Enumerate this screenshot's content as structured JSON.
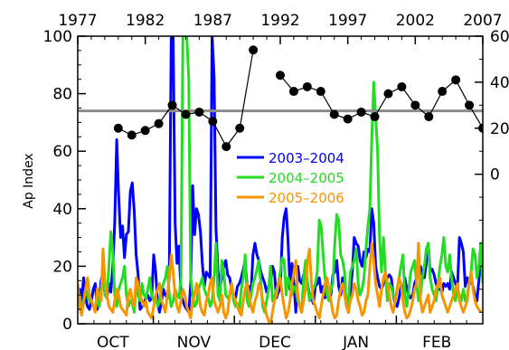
{
  "chart_data": {
    "type": "line",
    "title": "",
    "ylabel": "Ap Index",
    "xlabel": "",
    "ylim": [
      0,
      100
    ],
    "yticks": [
      0,
      20,
      40,
      60,
      80,
      100
    ],
    "bottom_axis": {
      "type": "categorical",
      "labels": [
        "OCT",
        "NOV",
        "DEC",
        "JAN",
        "FEB"
      ]
    },
    "top_axis": {
      "labels": [
        1977,
        1982,
        1987,
        1992,
        1997,
        2002,
        2007
      ],
      "range": [
        1977,
        2007
      ]
    },
    "right_axis": {
      "tick_labels": [
        "60",
        "40",
        "20",
        "0"
      ],
      "tick_values": [
        60,
        40,
        20,
        0
      ]
    },
    "reference_line": {
      "value": 74,
      "color": "#8c8c8c"
    },
    "annual_overlay": {
      "color": "#000000",
      "axis": "right",
      "segments": [
        {
          "year": [
            1980,
            1981,
            1982,
            1983,
            1984,
            1985,
            1986,
            1987,
            1988,
            1989
          ],
          "value": [
            20,
            17,
            19,
            22,
            30,
            26,
            27,
            23,
            12,
            20
          ]
        },
        {
          "year": [
            1989,
            1990
          ],
          "value": [
            20,
            54
          ]
        },
        {
          "year": [
            1992,
            1993,
            1994,
            1995,
            1996,
            1997,
            1998,
            1999,
            2000,
            2001,
            2002,
            2003,
            2004,
            2005,
            2006
          ],
          "value": [
            43,
            36,
            38,
            36,
            26,
            24,
            27,
            25,
            35,
            38,
            30,
            25,
            36,
            41,
            30
          ]
        },
        {
          "year": [
            2006,
            2007
          ],
          "value": [
            30,
            20
          ]
        }
      ],
      "dot_years": [
        1980,
        1981,
        1982,
        1983,
        1984,
        1985,
        1986,
        1987,
        1988,
        1989,
        1990,
        1992,
        1993,
        1994,
        1995,
        1996,
        1997,
        1998,
        1999,
        2000,
        2001,
        2002,
        2003,
        2004,
        2005,
        2006,
        2007
      ]
    },
    "series": [
      {
        "name": "2003–2004",
        "color": "#0000ff",
        "start_day": 0,
        "values": [
          10,
          12,
          8,
          16,
          9,
          6,
          5,
          8,
          12,
          14,
          5,
          8,
          15,
          18,
          10,
          9,
          14,
          11,
          20,
          35,
          64,
          45,
          30,
          34,
          23,
          31,
          32,
          46,
          49,
          39,
          24,
          17,
          5,
          6,
          7,
          9,
          10,
          8,
          9,
          24,
          18,
          7,
          4,
          8,
          12,
          10,
          9,
          16,
          100,
          100,
          35,
          21,
          27,
          10,
          8,
          6,
          5,
          4,
          14,
          48,
          31,
          40,
          38,
          32,
          21,
          13,
          18,
          17,
          16,
          100,
          86,
          33,
          18,
          12,
          16,
          20,
          22,
          17,
          16,
          12,
          10,
          9,
          13,
          14,
          16,
          19,
          22,
          13,
          13,
          11,
          24,
          28,
          24,
          22,
          18,
          16,
          14,
          11,
          13,
          14,
          20,
          18,
          9,
          11,
          12,
          30,
          37,
          40,
          29,
          12,
          21,
          14,
          4,
          20,
          15,
          14,
          17,
          16,
          14,
          10,
          9,
          7,
          13,
          14,
          16,
          11,
          13,
          9,
          10,
          9,
          10,
          17,
          18,
          22,
          13,
          10,
          16,
          12,
          8,
          4,
          11,
          18,
          30,
          28,
          27,
          22,
          20,
          25,
          23,
          26,
          25,
          40,
          35,
          20,
          16,
          13,
          12,
          14,
          16,
          16,
          17,
          16,
          10,
          7,
          6,
          9,
          13,
          10,
          16,
          12,
          10,
          9,
          10,
          14,
          16,
          18,
          20,
          17,
          16,
          21,
          28,
          18,
          19,
          17,
          14,
          12,
          12,
          11,
          14,
          13,
          14,
          12,
          18,
          16,
          14,
          12,
          30,
          28,
          25,
          13,
          16,
          14,
          15,
          13,
          10,
          8,
          15,
          23,
          20
        ]
      },
      {
        "name": "2004–2005",
        "color": "#22dd22",
        "start_day": 0,
        "values": [
          9,
          10,
          5,
          7,
          12,
          10,
          8,
          8,
          6,
          5,
          10,
          6,
          12,
          18,
          10,
          9,
          20,
          32,
          25,
          10,
          6,
          12,
          14,
          16,
          20,
          10,
          6,
          8,
          7,
          4,
          13,
          10,
          8,
          14,
          10,
          9,
          12,
          16,
          10,
          8,
          10,
          6,
          8,
          12,
          14,
          16,
          20,
          10,
          6,
          8,
          12,
          10,
          9,
          16,
          100,
          100,
          100,
          85,
          16,
          10,
          6,
          7,
          12,
          14,
          16,
          12,
          10,
          9,
          6,
          8,
          16,
          28,
          10,
          8,
          22,
          18,
          10,
          9,
          10,
          14,
          8,
          6,
          7,
          5,
          12,
          16,
          24,
          8,
          6,
          10,
          14,
          16,
          19,
          22,
          14,
          6,
          4,
          8,
          12,
          20,
          8,
          9,
          12,
          14,
          18,
          23,
          22,
          10,
          16,
          14,
          10,
          13,
          12,
          8,
          6,
          4,
          16,
          22,
          14,
          8,
          10,
          12,
          14,
          18,
          36,
          34,
          24,
          16,
          10,
          8,
          12,
          14,
          28,
          38,
          36,
          24,
          22,
          18,
          6,
          8,
          18,
          20,
          22,
          26,
          14,
          10,
          12,
          16,
          26,
          34,
          40,
          64,
          84,
          72,
          60,
          30,
          18,
          30,
          18,
          8,
          14,
          13,
          10,
          8,
          12,
          16,
          20,
          24,
          10,
          6,
          12,
          18,
          20,
          22,
          14,
          8,
          10,
          16,
          20,
          26,
          28,
          16,
          12,
          10,
          8,
          14,
          20,
          24,
          30,
          20,
          18,
          24,
          16,
          10,
          8,
          12,
          10,
          8,
          12,
          8,
          10,
          14,
          18,
          26,
          24,
          16,
          20,
          28,
          14
        ]
      },
      {
        "name": "2005–2006",
        "color": "#f59500",
        "start_day": 0,
        "values": [
          14,
          6,
          3,
          8,
          12,
          16,
          10,
          8,
          6,
          4,
          12,
          10,
          8,
          26,
          14,
          10,
          6,
          5,
          4,
          8,
          12,
          10,
          6,
          5,
          4,
          3,
          10,
          12,
          8,
          6,
          16,
          14,
          10,
          8,
          6,
          8,
          4,
          3,
          2,
          6,
          10,
          12,
          14,
          8,
          6,
          4,
          10,
          16,
          24,
          18,
          10,
          6,
          4,
          8,
          12,
          10,
          6,
          4,
          2,
          8,
          10,
          14,
          12,
          6,
          4,
          3,
          8,
          10,
          14,
          16,
          8,
          6,
          4,
          6,
          10,
          4,
          2,
          4,
          10,
          14,
          10,
          8,
          6,
          4,
          3,
          8,
          12,
          14,
          10,
          6,
          4,
          8,
          10,
          14,
          12,
          8,
          6,
          3,
          1,
          0,
          4,
          8,
          10,
          14,
          16,
          10,
          6,
          2,
          4,
          8,
          14,
          18,
          22,
          10,
          6,
          4,
          8,
          12,
          22,
          26,
          14,
          8,
          6,
          4,
          2,
          6,
          10,
          14,
          16,
          12,
          8,
          4,
          2,
          3,
          8,
          12,
          14,
          10,
          6,
          4,
          8,
          10,
          14,
          12,
          8,
          6,
          3,
          4,
          8,
          10,
          20,
          28,
          22,
          14,
          10,
          6,
          12,
          16,
          18,
          14,
          10,
          6,
          4,
          8,
          12,
          16,
          14,
          8,
          4,
          2,
          3,
          5,
          8,
          12,
          14,
          28,
          8,
          4,
          6,
          8,
          10,
          4,
          6,
          8,
          12,
          14,
          16,
          10,
          8,
          6,
          4,
          6,
          8,
          10,
          12,
          14,
          8,
          6,
          4,
          6,
          8,
          14,
          18,
          12,
          8,
          6,
          5,
          4
        ]
      }
    ],
    "legend": {
      "placement": "center",
      "entries": [
        "2003–2004",
        "2004–2005",
        "2005–2006"
      ]
    }
  }
}
